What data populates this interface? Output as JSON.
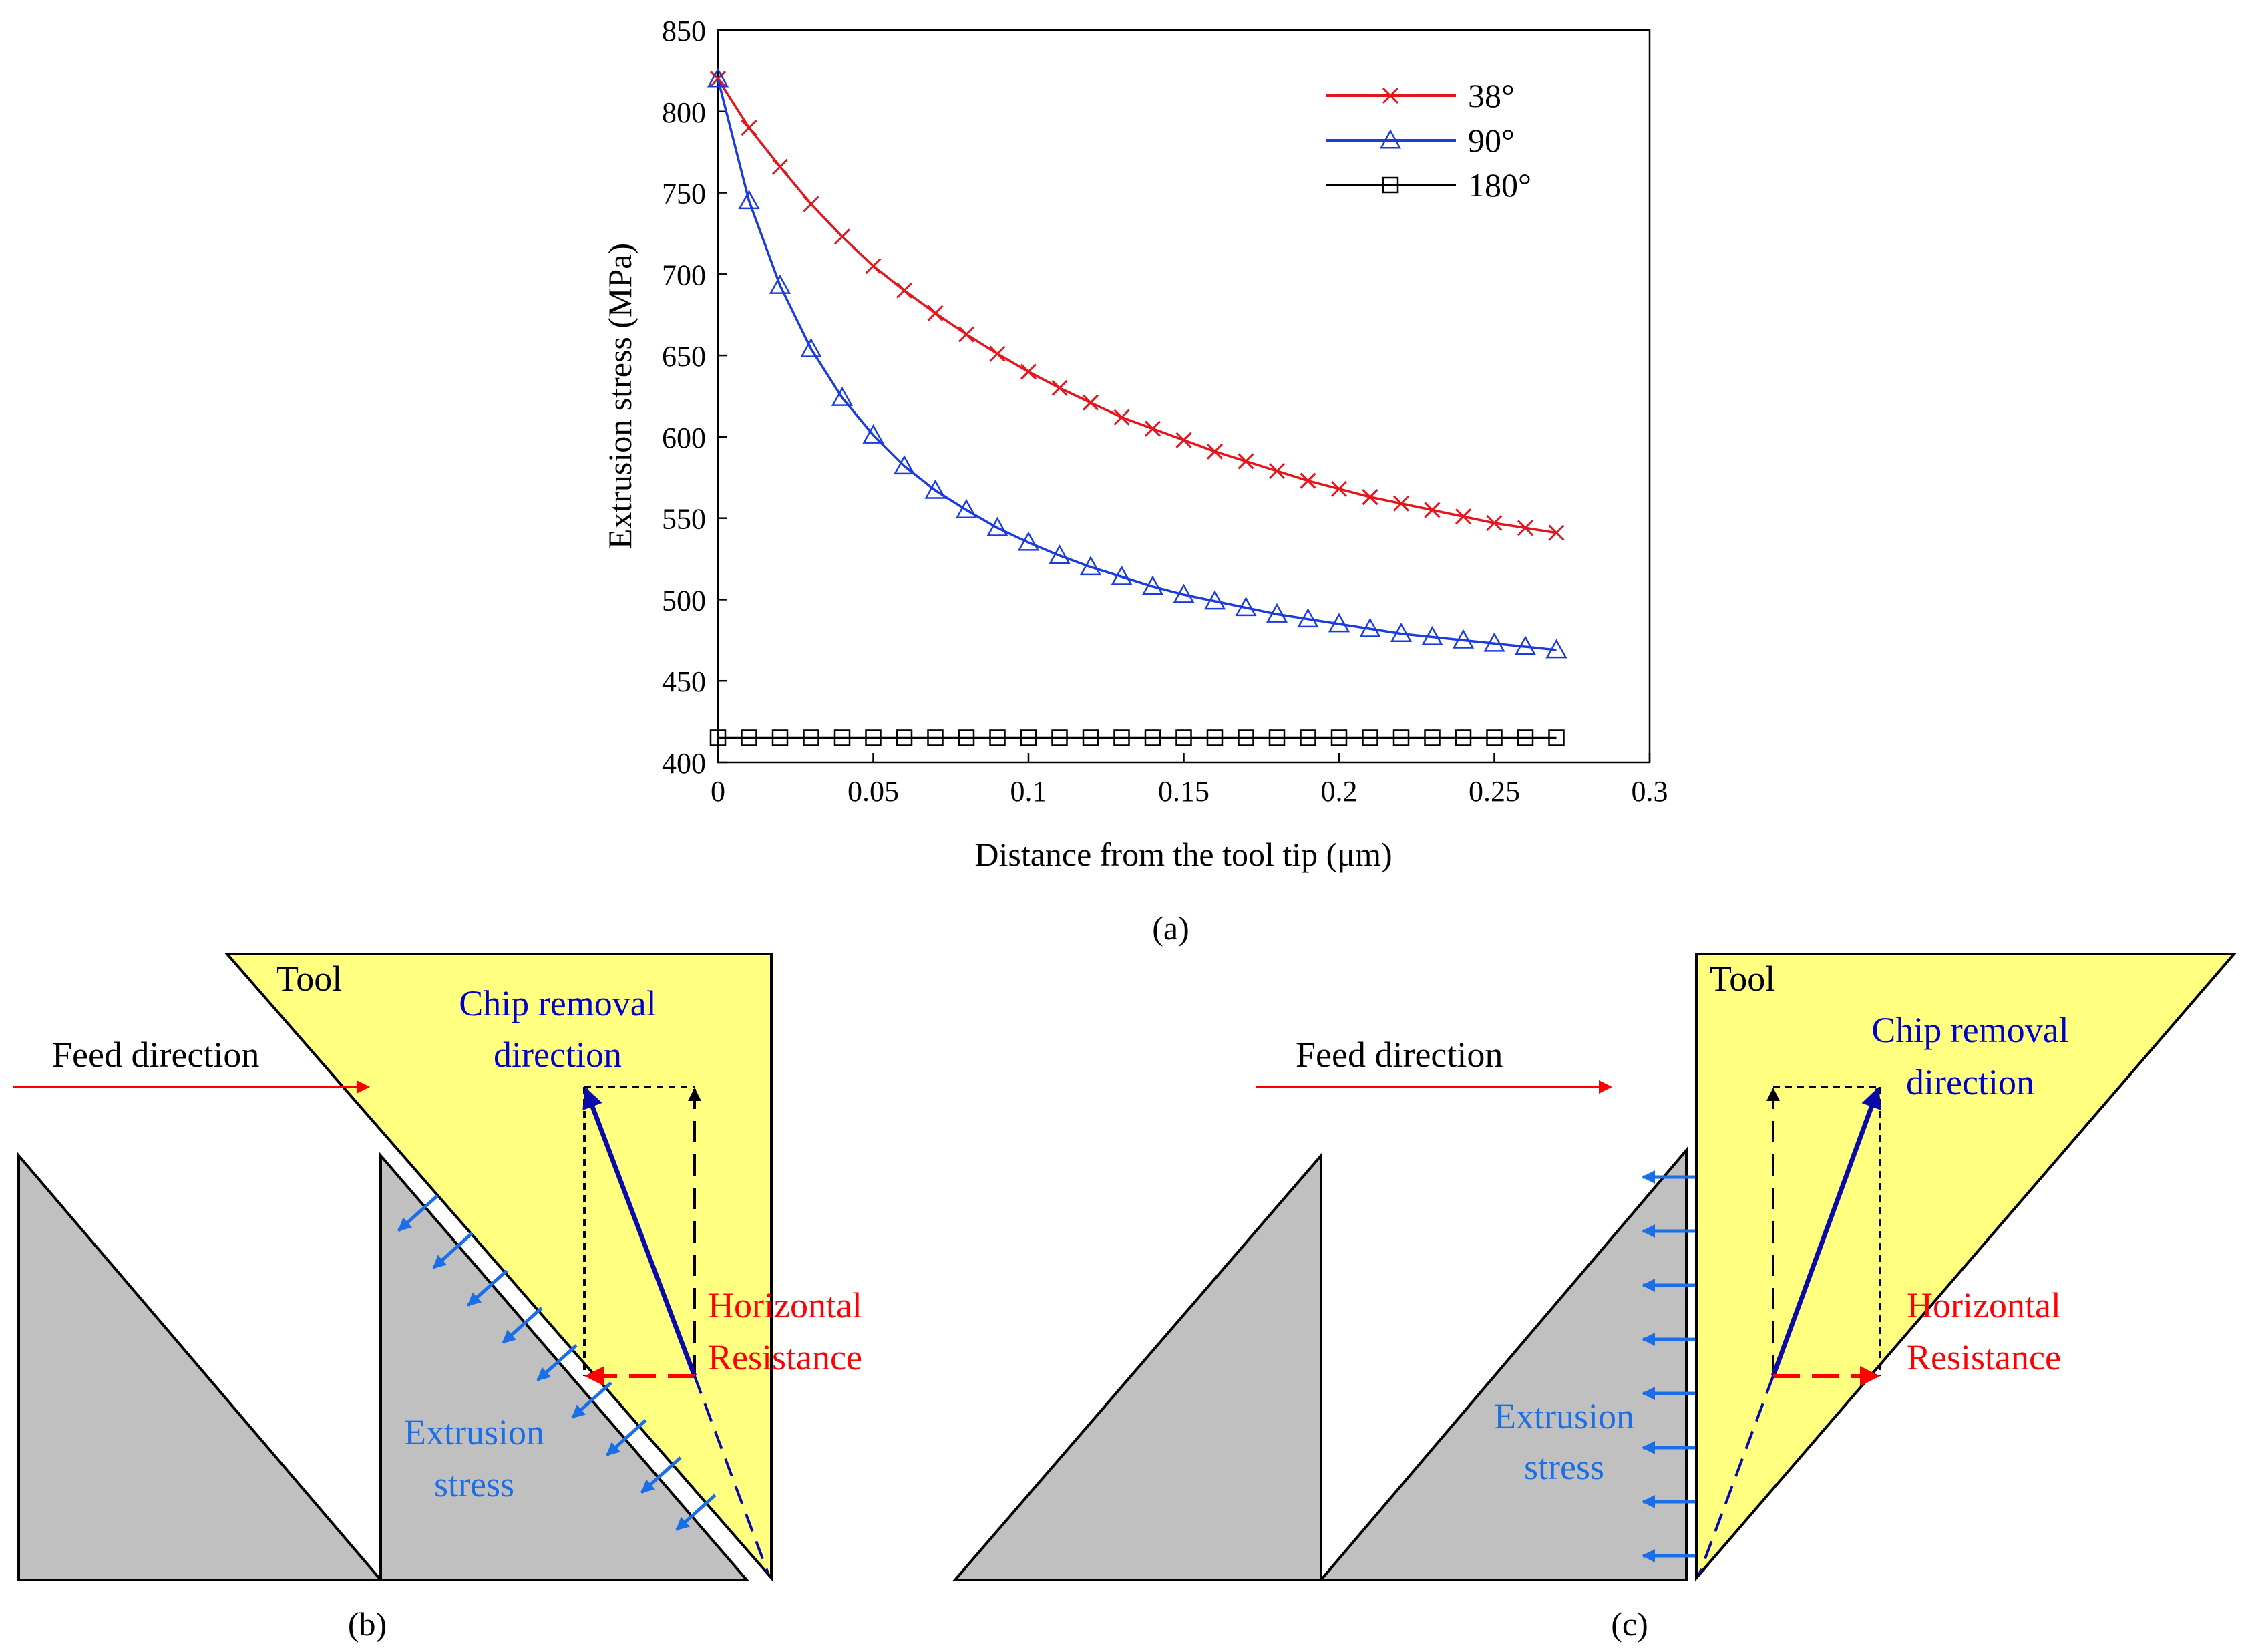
{
  "panel_a": {
    "caption": "(a)",
    "chart_data": {
      "type": "line",
      "xlabel": "Distance from the tool tip (μm)",
      "ylabel": "Extrusion stress  (MPa)",
      "xlim": [
        0,
        0.3
      ],
      "ylim": [
        400,
        850
      ],
      "xticks": [
        "0",
        "0.05",
        "0.1",
        "0.15",
        "0.2",
        "0.25",
        "0.3"
      ],
      "yticks": [
        "400",
        "450",
        "500",
        "550",
        "600",
        "650",
        "700",
        "750",
        "800",
        "850"
      ],
      "legend_position": "top-right",
      "x": [
        0,
        0.01,
        0.02,
        0.03,
        0.04,
        0.05,
        0.06,
        0.07,
        0.08,
        0.09,
        0.1,
        0.11,
        0.12,
        0.13,
        0.14,
        0.15,
        0.16,
        0.17,
        0.18,
        0.19,
        0.2,
        0.21,
        0.22,
        0.23,
        0.24,
        0.25,
        0.26,
        0.27
      ],
      "series": [
        {
          "name": "38°",
          "color": "#e8141c",
          "marker": "x",
          "values": [
            820,
            790,
            766,
            743,
            723,
            705,
            690,
            676,
            663,
            651,
            640,
            630,
            621,
            612,
            605,
            598,
            591,
            585,
            579,
            573,
            568,
            563,
            559,
            555,
            551,
            547,
            544,
            541
          ]
        },
        {
          "name": "90°",
          "color": "#1a3be0",
          "marker": "triangle",
          "values": [
            820,
            745,
            693,
            654,
            624,
            601,
            582,
            567,
            555,
            544,
            535,
            527,
            520,
            514,
            508,
            503,
            499,
            495,
            491,
            488,
            485,
            482,
            479,
            477,
            475,
            473,
            471,
            469
          ]
        },
        {
          "name": "180°",
          "color": "#000000",
          "marker": "square",
          "values": [
            415,
            415,
            415,
            415,
            415,
            415,
            415,
            415,
            415,
            415,
            415,
            415,
            415,
            415,
            415,
            415,
            415,
            415,
            415,
            415,
            415,
            415,
            415,
            415,
            415,
            415,
            415,
            415
          ]
        }
      ]
    }
  },
  "panel_b": {
    "caption": "(b)",
    "tool_label": "Tool",
    "feed_label": "Feed direction",
    "chip_label_line1": "Chip removal",
    "chip_label_line2": "direction",
    "resistance_line1": "Horizontal",
    "resistance_line2": "Resistance",
    "extrusion_line1": "Extrusion",
    "extrusion_line2": "stress"
  },
  "panel_c": {
    "caption": "(c)",
    "tool_label": "Tool",
    "feed_label": "Feed direction",
    "chip_label_line1": "Chip removal",
    "chip_label_line2": "direction",
    "resistance_line1": "Horizontal",
    "resistance_line2": "Resistance",
    "extrusion_line1": "Extrusion",
    "extrusion_line2": "stress"
  },
  "colors": {
    "tool_fill": "#ffff80",
    "workpiece_fill": "#c0c0c0",
    "feed_arrow": "#ff0000",
    "chip_arrow": "#0a0aa8",
    "stress_arrow": "#1a6ee8",
    "resistance_text": "#ff0000",
    "chip_text": "#0000cc",
    "extrusion_text": "#1a6ee8"
  }
}
